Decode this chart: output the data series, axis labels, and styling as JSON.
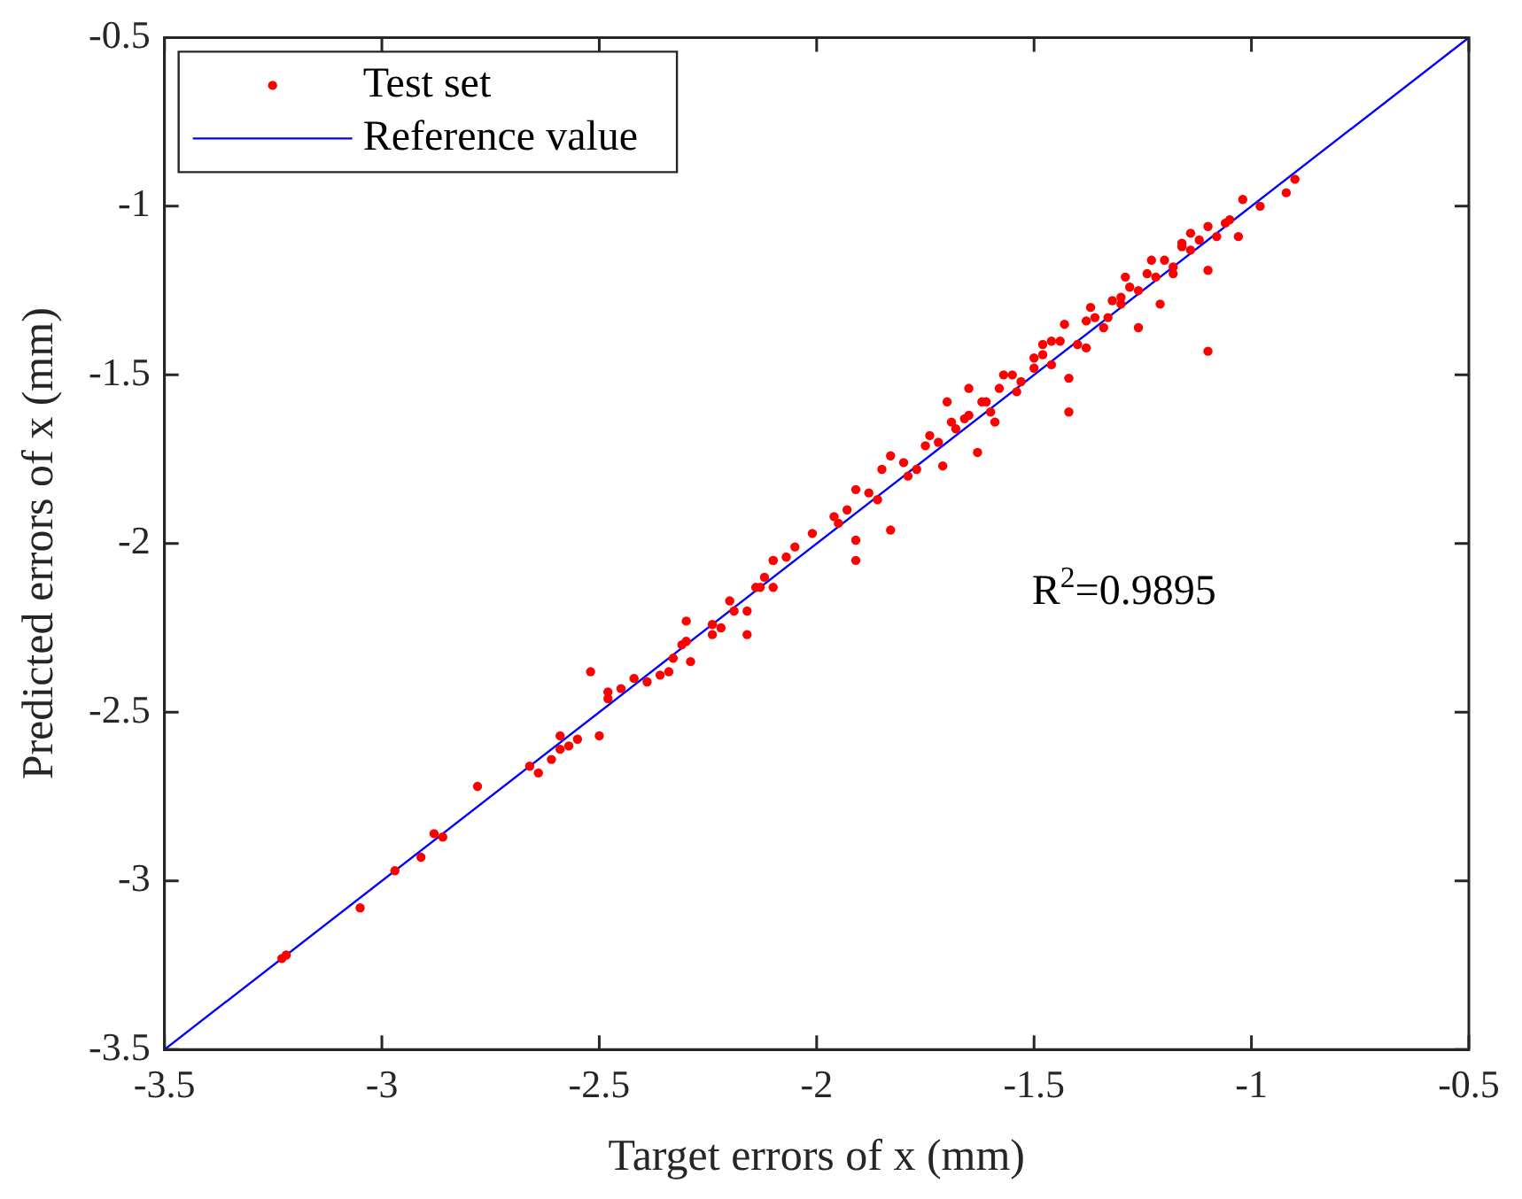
{
  "chart_data": {
    "type": "scatter",
    "xlabel": "Target errors of x (mm)",
    "ylabel": "Predicted errors of x (mm)",
    "xlim": [
      -3.5,
      -0.5
    ],
    "ylim": [
      -3.5,
      -0.5
    ],
    "xticks": [
      -3.5,
      -3,
      -2.5,
      -2,
      -1.5,
      -1,
      -0.5
    ],
    "yticks": [
      -3.5,
      -3,
      -2.5,
      -2,
      -1.5,
      -1,
      -0.5
    ],
    "grid": false,
    "legend": "top left",
    "annotations": [
      "R$^{2}$=0.9895"
    ],
    "series": [
      {
        "name": "Test set",
        "marker": "circle",
        "color": "#ff0000",
        "x": [
          -3.23,
          -3.22,
          -3.05,
          -2.97,
          -2.91,
          -2.88,
          -2.86,
          -2.78,
          -2.66,
          -2.64,
          -2.61,
          -2.59,
          -2.59,
          -2.57,
          -2.55,
          -2.52,
          -2.5,
          -2.48,
          -2.48,
          -2.45,
          -2.42,
          -2.39,
          -2.36,
          -2.34,
          -2.33,
          -2.31,
          -2.3,
          -2.3,
          -2.29,
          -2.24,
          -2.24,
          -2.22,
          -2.2,
          -2.19,
          -2.16,
          -2.16,
          -2.14,
          -2.13,
          -2.12,
          -2.1,
          -2.1,
          -2.1,
          -2.07,
          -2.05,
          -2.01,
          -1.96,
          -1.95,
          -1.93,
          -1.91,
          -1.91,
          -1.91,
          -1.88,
          -1.86,
          -1.85,
          -1.83,
          -1.83,
          -1.8,
          -1.79,
          -1.77,
          -1.75,
          -1.74,
          -1.72,
          -1.71,
          -1.69,
          -1.7,
          -1.68,
          -1.66,
          -1.65,
          -1.65,
          -1.63,
          -1.62,
          -1.61,
          -1.6,
          -1.58,
          -1.57,
          -1.59,
          -1.55,
          -1.54,
          -1.53,
          -1.5,
          -1.5,
          -1.48,
          -1.48,
          -1.46,
          -1.46,
          -1.44,
          -1.42,
          -1.42,
          -1.43,
          -1.4,
          -1.38,
          -1.38,
          -1.37,
          -1.36,
          -1.34,
          -1.33,
          -1.32,
          -1.3,
          -1.3,
          -1.29,
          -1.28,
          -1.26,
          -1.26,
          -1.24,
          -1.23,
          -1.22,
          -1.21,
          -1.2,
          -1.18,
          -1.18,
          -1.16,
          -1.16,
          -1.14,
          -1.14,
          -1.12,
          -1.1,
          -1.1,
          -1.1,
          -1.08,
          -1.06,
          -1.05,
          -1.03,
          -1.02,
          -0.98,
          -0.92,
          -0.9
        ],
        "values": [
          -3.23,
          -3.22,
          -3.08,
          -2.97,
          -2.93,
          -2.86,
          -2.87,
          -2.72,
          -2.66,
          -2.68,
          -2.64,
          -2.57,
          -2.61,
          -2.6,
          -2.58,
          -2.38,
          -2.57,
          -2.44,
          -2.46,
          -2.43,
          -2.4,
          -2.41,
          -2.39,
          -2.38,
          -2.34,
          -2.3,
          -2.29,
          -2.23,
          -2.35,
          -2.24,
          -2.27,
          -2.25,
          -2.17,
          -2.2,
          -2.27,
          -2.2,
          -2.13,
          -2.13,
          -2.1,
          -2.05,
          -2.13,
          -2.05,
          -2.04,
          -2.01,
          -1.97,
          -1.92,
          -1.94,
          -1.9,
          -2.05,
          -1.99,
          -1.84,
          -1.85,
          -1.87,
          -1.78,
          -1.96,
          -1.74,
          -1.76,
          -1.8,
          -1.78,
          -1.71,
          -1.68,
          -1.7,
          -1.77,
          -1.64,
          -1.58,
          -1.66,
          -1.63,
          -1.62,
          -1.54,
          -1.73,
          -1.58,
          -1.58,
          -1.61,
          -1.54,
          -1.5,
          -1.64,
          -1.5,
          -1.55,
          -1.52,
          -1.45,
          -1.48,
          -1.41,
          -1.44,
          -1.47,
          -1.4,
          -1.4,
          -1.61,
          -1.51,
          -1.35,
          -1.41,
          -1.42,
          -1.34,
          -1.3,
          -1.33,
          -1.36,
          -1.33,
          -1.28,
          -1.27,
          -1.29,
          -1.21,
          -1.24,
          -1.36,
          -1.25,
          -1.2,
          -1.16,
          -1.21,
          -1.29,
          -1.16,
          -1.18,
          -1.2,
          -1.11,
          -1.12,
          -1.08,
          -1.13,
          -1.1,
          -1.06,
          -1.19,
          -1.43,
          -1.09,
          -1.05,
          -1.04,
          -1.09,
          -0.98,
          -1,
          -0.96,
          -0.92
        ]
      },
      {
        "name": "Reference value",
        "type": "line",
        "marker": "none",
        "color": "#0000ff",
        "x": [
          -3.5,
          -0.5
        ],
        "values": [
          -3.5,
          -0.5
        ]
      }
    ]
  }
}
